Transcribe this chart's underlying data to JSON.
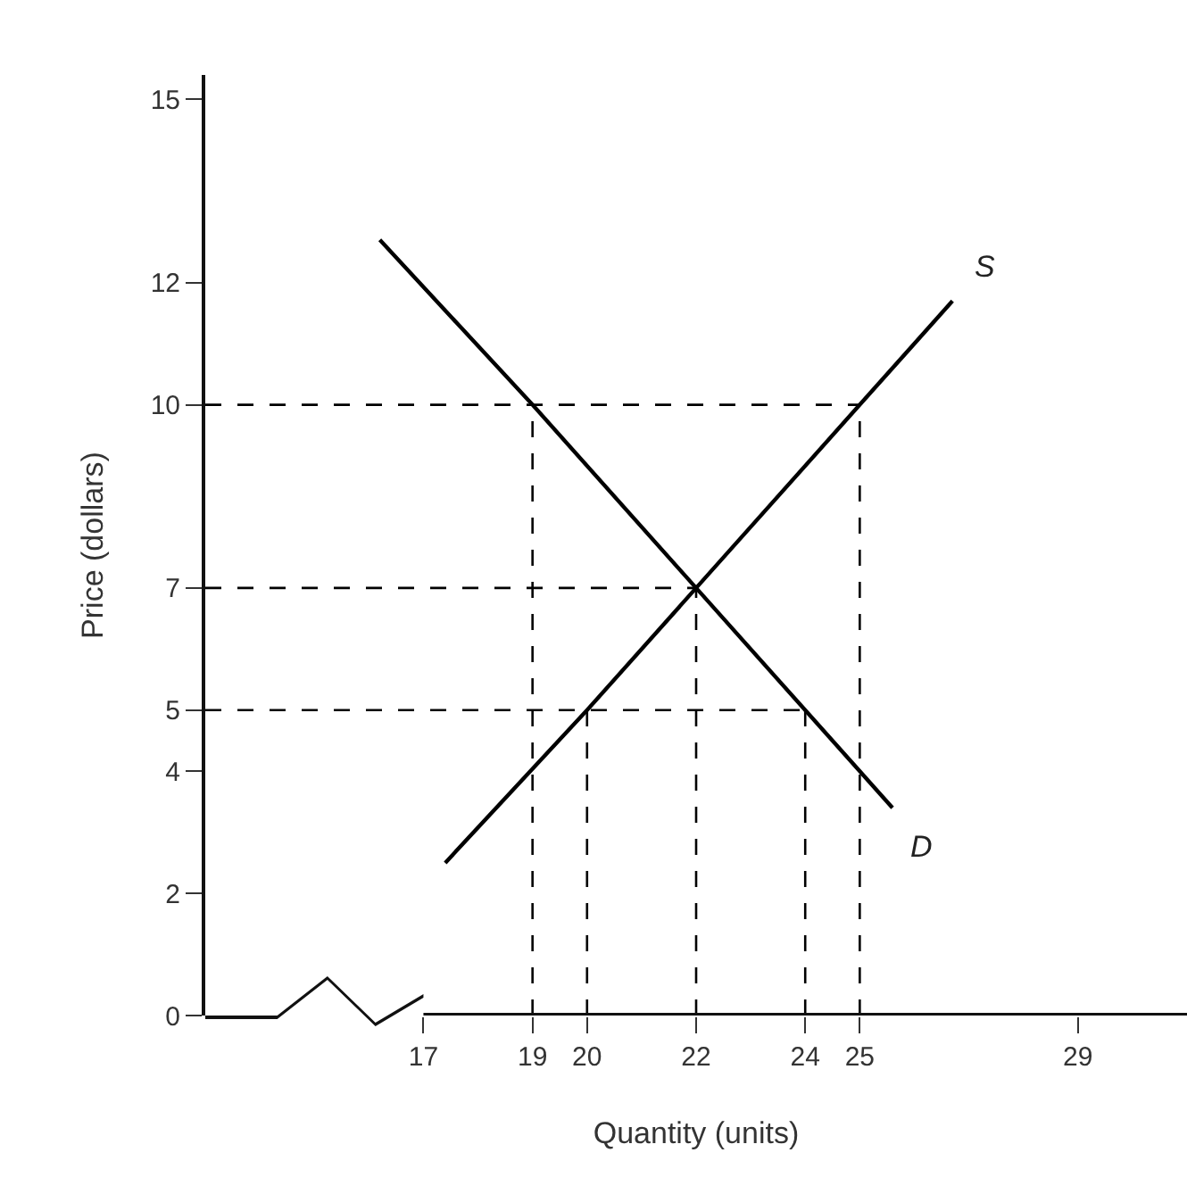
{
  "chart_data": {
    "type": "line",
    "xlabel": "Quantity (units)",
    "ylabel": "Price (dollars)",
    "xlim": [
      13,
      31
    ],
    "ylim": [
      0,
      15.4
    ],
    "xticks": [
      17,
      19,
      20,
      22,
      24,
      25,
      29
    ],
    "yticks": [
      0,
      2,
      4,
      5,
      7,
      10,
      12,
      15
    ],
    "grid": false,
    "legend": false,
    "marker": "none",
    "series": [
      {
        "name": "S",
        "color": "#000000",
        "line_style": "solid",
        "x": [
          17.4,
          20,
          22,
          25,
          26.7
        ],
        "values": [
          2.5,
          5,
          7,
          10,
          11.7
        ]
      },
      {
        "name": "D",
        "color": "#000000",
        "line_style": "solid",
        "x": [
          16.2,
          19,
          22,
          24,
          25.6
        ],
        "values": [
          12.7,
          10,
          7,
          5,
          3.4
        ]
      },
      {
        "color": "#000000",
        "line_style": "dashed",
        "x": [
          13,
          25
        ],
        "values": [
          10,
          10
        ]
      },
      {
        "color": "#000000",
        "line_style": "dashed",
        "x": [
          13,
          22
        ],
        "values": [
          7,
          7
        ]
      },
      {
        "color": "#000000",
        "line_style": "dashed",
        "x": [
          13,
          24
        ],
        "values": [
          5,
          5
        ]
      },
      {
        "color": "#000000",
        "line_style": "dashed",
        "x": [
          19,
          19
        ],
        "values": [
          0,
          10
        ]
      },
      {
        "color": "#000000",
        "line_style": "dashed",
        "x": [
          20,
          20
        ],
        "values": [
          0,
          5
        ]
      },
      {
        "color": "#000000",
        "line_style": "dashed",
        "x": [
          22,
          22
        ],
        "values": [
          0,
          7
        ]
      },
      {
        "color": "#000000",
        "line_style": "dashed",
        "x": [
          24,
          24
        ],
        "values": [
          0,
          5
        ]
      },
      {
        "color": "#000000",
        "line_style": "dashed",
        "x": [
          25,
          25
        ],
        "values": [
          0,
          10
        ]
      }
    ]
  }
}
